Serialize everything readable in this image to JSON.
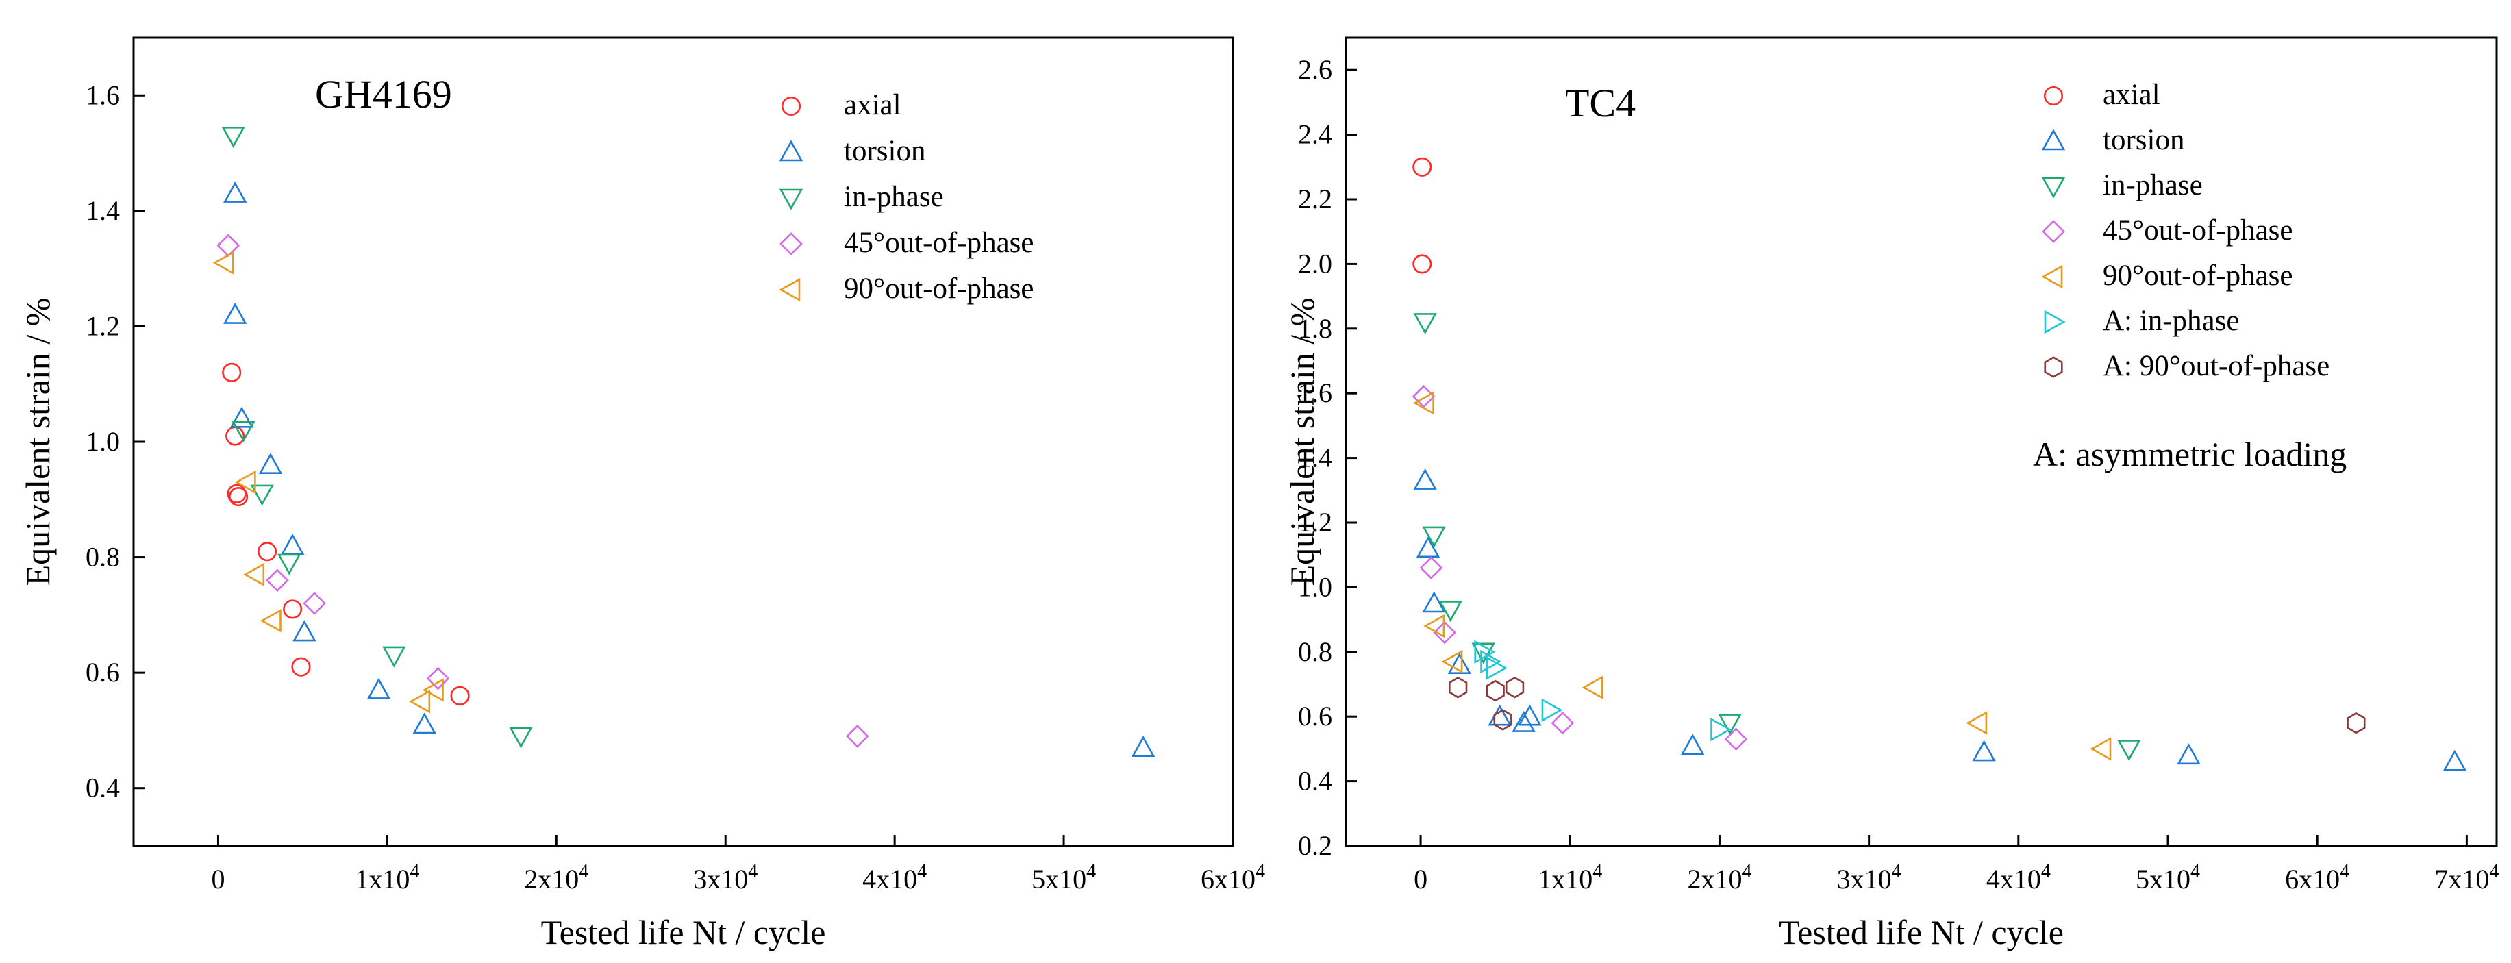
{
  "chart_data": [
    {
      "type": "scatter",
      "panel_label": "GH4169",
      "xlabel": "Tested life Nt / cycle",
      "ylabel": "Equivalent strain / %",
      "xlim": [
        -5000,
        60000
      ],
      "ylim": [
        0.3,
        1.7
      ],
      "x_ticks": [
        {
          "value": 0,
          "label": "0"
        },
        {
          "value": 10000,
          "base": "1x10",
          "exp": "4"
        },
        {
          "value": 20000,
          "base": "2x10",
          "exp": "4"
        },
        {
          "value": 30000,
          "base": "3x10",
          "exp": "4"
        },
        {
          "value": 40000,
          "base": "4x10",
          "exp": "4"
        },
        {
          "value": 50000,
          "base": "5x10",
          "exp": "4"
        },
        {
          "value": 60000,
          "base": "6x10",
          "exp": "4"
        }
      ],
      "y_ticks": [
        {
          "value": 0.4,
          "label": "0.4"
        },
        {
          "value": 0.6,
          "label": "0.6"
        },
        {
          "value": 0.8,
          "label": "0.8"
        },
        {
          "value": 1.0,
          "label": "1.0"
        },
        {
          "value": 1.2,
          "label": "1.2"
        },
        {
          "value": 1.4,
          "label": "1.4"
        },
        {
          "value": 1.6,
          "label": "1.6"
        }
      ],
      "legend_position": "top-right",
      "annotation": "",
      "series": [
        {
          "name": "axial",
          "marker": "circle",
          "color": "#ff2a2a",
          "points": [
            [
              800,
              1.12
            ],
            [
              1000,
              1.01
            ],
            [
              1100,
              0.91
            ],
            [
              1200,
              0.905
            ],
            [
              2900,
              0.81
            ],
            [
              4400,
              0.71
            ],
            [
              4900,
              0.61
            ],
            [
              14300,
              0.56
            ]
          ]
        },
        {
          "name": "torsion",
          "marker": "triangle-up",
          "color": "#1f7bd6",
          "points": [
            [
              1000,
              1.43
            ],
            [
              1000,
              1.22
            ],
            [
              1400,
              1.04
            ],
            [
              3100,
              0.96
            ],
            [
              4400,
              0.82
            ],
            [
              5100,
              0.67
            ],
            [
              9500,
              0.57
            ],
            [
              12200,
              0.51
            ],
            [
              54700,
              0.47
            ]
          ]
        },
        {
          "name": "in-phase",
          "marker": "triangle-down",
          "color": "#1eaa6e",
          "points": [
            [
              900,
              1.53
            ],
            [
              1500,
              1.02
            ],
            [
              2600,
              0.91
            ],
            [
              4200,
              0.79
            ],
            [
              10400,
              0.63
            ],
            [
              17900,
              0.49
            ]
          ]
        },
        {
          "name": "45°out-of-phase",
          "marker": "diamond",
          "color": "#d46be6",
          "points": [
            [
              600,
              1.34
            ],
            [
              3500,
              0.76
            ],
            [
              5700,
              0.72
            ],
            [
              13000,
              0.59
            ],
            [
              37800,
              0.49
            ]
          ]
        },
        {
          "name": "90°out-of-phase",
          "marker": "triangle-left",
          "color": "#e89a1e",
          "points": [
            [
              400,
              1.31
            ],
            [
              1700,
              0.93
            ],
            [
              2200,
              0.77
            ],
            [
              3200,
              0.69
            ],
            [
              12000,
              0.55
            ],
            [
              12800,
              0.57
            ]
          ]
        }
      ]
    },
    {
      "type": "scatter",
      "panel_label": "TC4",
      "xlabel": "Tested life Nt / cycle",
      "ylabel": "Equivalent strain / %",
      "xlim": [
        -5000,
        72000
      ],
      "ylim": [
        0.2,
        2.7
      ],
      "x_ticks": [
        {
          "value": 0,
          "label": "0"
        },
        {
          "value": 10000,
          "base": "1x10",
          "exp": "4"
        },
        {
          "value": 20000,
          "base": "2x10",
          "exp": "4"
        },
        {
          "value": 30000,
          "base": "3x10",
          "exp": "4"
        },
        {
          "value": 40000,
          "base": "4x10",
          "exp": "4"
        },
        {
          "value": 50000,
          "base": "5x10",
          "exp": "4"
        },
        {
          "value": 60000,
          "base": "6x10",
          "exp": "4"
        },
        {
          "value": 70000,
          "base": "7x10",
          "exp": "4"
        }
      ],
      "y_ticks": [
        {
          "value": 0.2,
          "label": "0.2"
        },
        {
          "value": 0.4,
          "label": "0.4"
        },
        {
          "value": 0.6,
          "label": "0.6"
        },
        {
          "value": 0.8,
          "label": "0.8"
        },
        {
          "value": 1.0,
          "label": "1.0"
        },
        {
          "value": 1.2,
          "label": "1.2"
        },
        {
          "value": 1.4,
          "label": "1.4"
        },
        {
          "value": 1.6,
          "label": "1.6"
        },
        {
          "value": 1.8,
          "label": "1.8"
        },
        {
          "value": 2.0,
          "label": "2.0"
        },
        {
          "value": 2.2,
          "label": "2.2"
        },
        {
          "value": 2.4,
          "label": "2.4"
        },
        {
          "value": 2.6,
          "label": "2.6"
        }
      ],
      "legend_position": "top-right",
      "annotation": "A: asymmetric loading",
      "series": [
        {
          "name": "axial",
          "marker": "circle",
          "color": "#ff2a2a",
          "points": [
            [
              100,
              2.3
            ],
            [
              100,
              2.0
            ]
          ]
        },
        {
          "name": "torsion",
          "marker": "triangle-up",
          "color": "#1f7bd6",
          "points": [
            [
              300,
              1.33
            ],
            [
              500,
              1.12
            ],
            [
              900,
              0.95
            ],
            [
              2600,
              0.76
            ],
            [
              5300,
              0.6
            ],
            [
              6900,
              0.58
            ],
            [
              7300,
              0.6
            ],
            [
              18200,
              0.51
            ],
            [
              37700,
              0.49
            ],
            [
              51400,
              0.48
            ],
            [
              69200,
              0.46
            ]
          ]
        },
        {
          "name": "in-phase",
          "marker": "triangle-down",
          "color": "#1eaa6e",
          "points": [
            [
              300,
              1.82
            ],
            [
              900,
              1.16
            ],
            [
              2000,
              0.93
            ],
            [
              4200,
              0.8
            ],
            [
              20700,
              0.58
            ],
            [
              47400,
              0.5
            ]
          ]
        },
        {
          "name": "45°out-of-phase",
          "marker": "diamond",
          "color": "#d46be6",
          "points": [
            [
              200,
              1.59
            ],
            [
              700,
              1.06
            ],
            [
              1600,
              0.86
            ],
            [
              9500,
              0.58
            ],
            [
              21100,
              0.53
            ]
          ]
        },
        {
          "name": "90°out-of-phase",
          "marker": "triangle-left",
          "color": "#e89a1e",
          "points": [
            [
              300,
              1.57
            ],
            [
              1000,
              0.88
            ],
            [
              2200,
              0.77
            ],
            [
              11600,
              0.69
            ],
            [
              37300,
              0.58
            ],
            [
              45600,
              0.5
            ]
          ]
        },
        {
          "name": "A: in-phase",
          "marker": "triangle-right",
          "color": "#22c4d6",
          "points": [
            [
              4200,
              0.8
            ],
            [
              4600,
              0.77
            ],
            [
              5000,
              0.75
            ],
            [
              8700,
              0.62
            ],
            [
              20000,
              0.56
            ]
          ]
        },
        {
          "name": "A: 90°out-of-phase",
          "marker": "hexagon",
          "color": "#8a3a3a",
          "points": [
            [
              2500,
              0.69
            ],
            [
              5000,
              0.68
            ],
            [
              5500,
              0.59
            ],
            [
              6300,
              0.69
            ],
            [
              62600,
              0.58
            ]
          ]
        }
      ]
    }
  ]
}
